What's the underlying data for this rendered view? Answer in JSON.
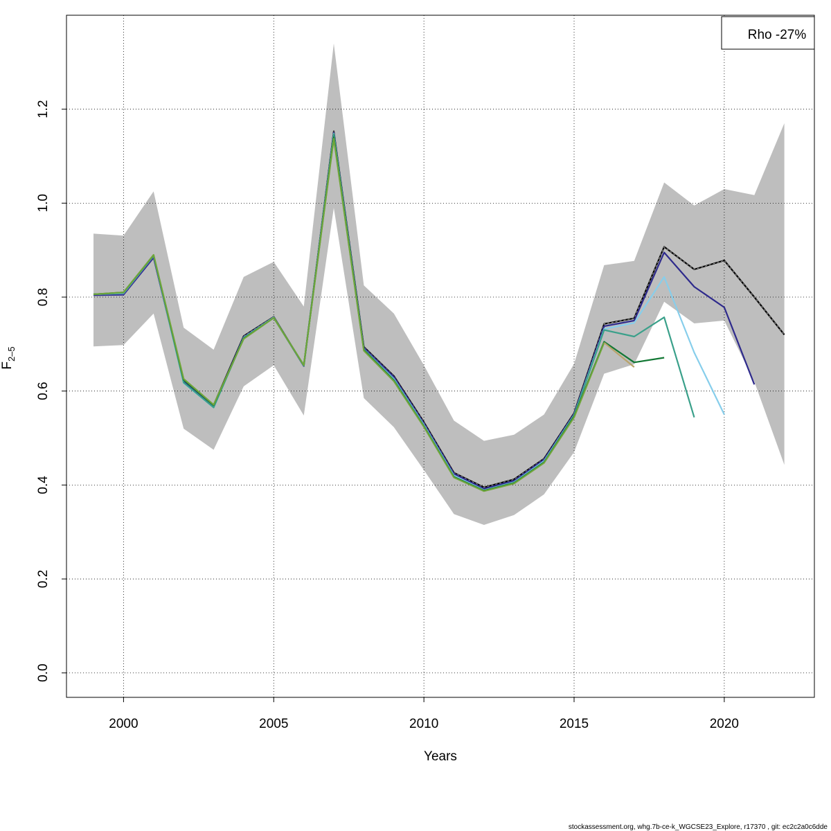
{
  "chart_data": {
    "type": "line",
    "xlabel": "Years",
    "ylabel_main": "F",
    "ylabel_sub": "2–5",
    "xlim": [
      1998.1,
      2023.0
    ],
    "ylim": [
      -0.052,
      1.4
    ],
    "x_ticks": [
      2000,
      2005,
      2010,
      2015,
      2020
    ],
    "x_tick_labels": [
      "2000",
      "2005",
      "2010",
      "2015",
      "2020"
    ],
    "y_ticks": [
      0.0,
      0.2,
      0.4,
      0.6,
      0.8,
      1.0,
      1.2
    ],
    "y_tick_labels": [
      "0.0",
      "0.2",
      "0.4",
      "0.6",
      "0.8",
      "1.0",
      "1.2"
    ],
    "grid": true,
    "legend": {
      "placement": "top-right",
      "text": "Rho -27%"
    },
    "confidence_band": {
      "color": "#bebebe",
      "x": [
        1999,
        2000,
        2001,
        2002,
        2003,
        2004,
        2005,
        2006,
        2007,
        2008,
        2009,
        2010,
        2011,
        2012,
        2013,
        2014,
        2015,
        2016,
        2017,
        2018,
        2019,
        2020,
        2021,
        2022
      ],
      "lower": [
        0.695,
        0.698,
        0.765,
        0.52,
        0.475,
        0.61,
        0.655,
        0.548,
        0.99,
        0.585,
        0.523,
        0.432,
        0.338,
        0.315,
        0.336,
        0.38,
        0.47,
        0.637,
        0.657,
        0.79,
        0.744,
        0.75,
        0.62,
        0.443
      ],
      "upper": [
        0.935,
        0.931,
        1.025,
        0.735,
        0.688,
        0.843,
        0.875,
        0.78,
        1.34,
        0.825,
        0.765,
        0.655,
        0.537,
        0.494,
        0.507,
        0.55,
        0.658,
        0.868,
        0.877,
        1.044,
        0.995,
        1.03,
        1.017,
        1.17
      ]
    },
    "series": [
      {
        "color": "#000000",
        "dashed_overlay": true,
        "x": [
          1999,
          2000,
          2001,
          2002,
          2003,
          2004,
          2005,
          2006,
          2007,
          2008,
          2009,
          2010,
          2011,
          2012,
          2013,
          2014,
          2015,
          2016,
          2017,
          2018,
          2019,
          2020,
          2021,
          2022
        ],
        "values": [
          0.805,
          0.806,
          0.886,
          0.622,
          0.57,
          0.717,
          0.758,
          0.654,
          1.153,
          0.694,
          0.632,
          0.534,
          0.426,
          0.395,
          0.412,
          0.456,
          0.553,
          0.743,
          0.755,
          0.907,
          0.859,
          0.878,
          0.8,
          0.72
        ]
      },
      {
        "color": "#2e2a8c",
        "x": [
          1999,
          2000,
          2001,
          2002,
          2003,
          2004,
          2005,
          2006,
          2007,
          2008,
          2009,
          2010,
          2011,
          2012,
          2013,
          2014,
          2015,
          2016,
          2017,
          2018,
          2019,
          2020,
          2021
        ],
        "values": [
          0.804,
          0.805,
          0.884,
          0.62,
          0.569,
          0.715,
          0.757,
          0.653,
          1.15,
          0.692,
          0.63,
          0.531,
          0.424,
          0.392,
          0.409,
          0.454,
          0.551,
          0.738,
          0.75,
          0.895,
          0.822,
          0.778,
          0.614
        ]
      },
      {
        "color": "#87ceeb",
        "x": [
          1999,
          2000,
          2001,
          2002,
          2003,
          2004,
          2005,
          2006,
          2007,
          2008,
          2009,
          2010,
          2011,
          2012,
          2013,
          2014,
          2015,
          2016,
          2017,
          2018,
          2019,
          2020
        ],
        "values": [
          0.806,
          0.808,
          0.888,
          0.617,
          0.565,
          0.714,
          0.757,
          0.654,
          1.148,
          0.689,
          0.626,
          0.528,
          0.42,
          0.389,
          0.406,
          0.451,
          0.549,
          0.732,
          0.745,
          0.843,
          0.682,
          0.55
        ]
      },
      {
        "color": "#3aa08a",
        "x": [
          1999,
          2000,
          2001,
          2002,
          2003,
          2004,
          2005,
          2006,
          2007,
          2008,
          2009,
          2010,
          2011,
          2012,
          2013,
          2014,
          2015,
          2016,
          2017,
          2018,
          2019
        ],
        "values": [
          0.806,
          0.809,
          0.889,
          0.618,
          0.565,
          0.713,
          0.756,
          0.654,
          1.147,
          0.688,
          0.624,
          0.526,
          0.418,
          0.388,
          0.405,
          0.449,
          0.548,
          0.73,
          0.716,
          0.757,
          0.544
        ]
      },
      {
        "color": "#117733",
        "x": [
          1999,
          2000,
          2001,
          2002,
          2003,
          2004,
          2005,
          2006,
          2007,
          2008,
          2009,
          2010,
          2011,
          2012,
          2013,
          2014,
          2015,
          2016,
          2017,
          2018
        ],
        "values": [
          0.806,
          0.81,
          0.889,
          0.624,
          0.57,
          0.712,
          0.756,
          0.655,
          1.14,
          0.688,
          0.622,
          0.525,
          0.417,
          0.388,
          0.404,
          0.448,
          0.546,
          0.705,
          0.661,
          0.671
        ]
      },
      {
        "color": "#6fa53a",
        "x": [
          1999,
          2000,
          2001,
          2002,
          2003,
          2004,
          2005,
          2006,
          2007,
          2008,
          2009,
          2010,
          2011,
          2012,
          2013,
          2014,
          2015,
          2016
        ],
        "values": [
          0.806,
          0.81,
          0.89,
          0.626,
          0.571,
          0.711,
          0.756,
          0.655,
          1.137,
          0.686,
          0.621,
          0.524,
          0.416,
          0.387,
          0.403,
          0.447,
          0.544,
          0.703
        ]
      },
      {
        "color": "#b9a46b",
        "x": [
          2016,
          2017
        ],
        "values": [
          0.703,
          0.651
        ]
      }
    ],
    "footer": "stockassessment.org, whg.7b-ce-k_WGCSE23_Explore, r17370 , git: ec2c2a0c6dde"
  }
}
